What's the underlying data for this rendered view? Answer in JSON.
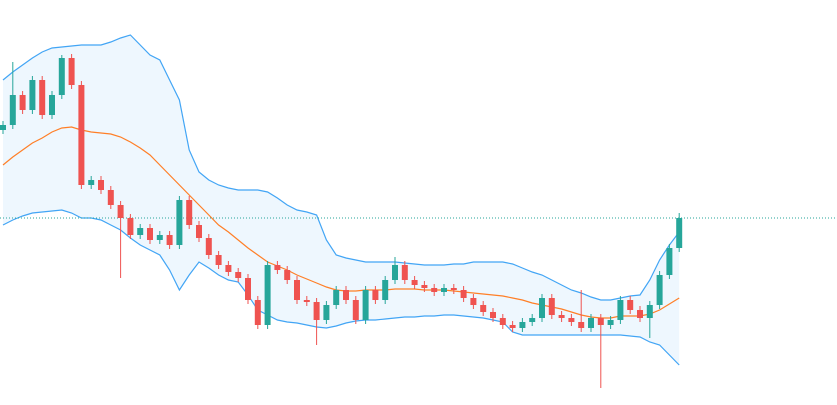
{
  "chart_data": {
    "type": "candlestick",
    "ylim": [
      0,
      405
    ],
    "up_color": "#26a69a",
    "down_color": "#ef5350",
    "band_fill": "#e3f2fd",
    "last_price": 187,
    "last_price_color": "#26a69a",
    "open": [
      275,
      280,
      310,
      295,
      325,
      290,
      310,
      347,
      320,
      220,
      225,
      215,
      200,
      187,
      170,
      177,
      165,
      170,
      160,
      205,
      180,
      167,
      150,
      140,
      133,
      127,
      105,
      80,
      140,
      135,
      125,
      105,
      103,
      85,
      100,
      115,
      105,
      85,
      115,
      105,
      125,
      140,
      125,
      120,
      117,
      113,
      117,
      115,
      107,
      100,
      93,
      87,
      80,
      77,
      83,
      87,
      107,
      90,
      87,
      83,
      77,
      87,
      80,
      85,
      105,
      95,
      87,
      100,
      130,
      157
    ],
    "high": [
      284,
      343,
      314,
      329,
      329,
      314,
      350,
      351,
      324,
      229,
      229,
      219,
      204,
      191,
      181,
      181,
      174,
      174,
      209,
      209,
      184,
      171,
      154,
      144,
      137,
      131,
      109,
      144,
      144,
      139,
      129,
      109,
      107,
      104,
      119,
      119,
      109,
      119,
      119,
      129,
      148,
      144,
      129,
      124,
      121,
      121,
      121,
      119,
      111,
      104,
      97,
      91,
      84,
      87,
      91,
      111,
      111,
      94,
      91,
      115,
      91,
      91,
      89,
      109,
      109,
      99,
      104,
      134,
      161,
      192
    ],
    "low": [
      271,
      276,
      291,
      291,
      286,
      286,
      306,
      316,
      216,
      216,
      211,
      196,
      127,
      166,
      166,
      161,
      161,
      156,
      156,
      176,
      163,
      146,
      136,
      129,
      123,
      101,
      76,
      76,
      131,
      121,
      101,
      99,
      60,
      81,
      96,
      101,
      81,
      81,
      101,
      101,
      121,
      121,
      116,
      113,
      109,
      109,
      111,
      103,
      96,
      89,
      83,
      76,
      73,
      73,
      79,
      83,
      86,
      83,
      79,
      73,
      73,
      17,
      76,
      81,
      91,
      83,
      67,
      96,
      126,
      153
    ],
    "close": [
      280,
      310,
      295,
      325,
      290,
      310,
      347,
      320,
      220,
      225,
      215,
      200,
      187,
      170,
      177,
      165,
      170,
      160,
      205,
      180,
      167,
      150,
      140,
      133,
      127,
      105,
      80,
      140,
      135,
      125,
      105,
      103,
      85,
      100,
      115,
      105,
      85,
      115,
      105,
      125,
      140,
      125,
      120,
      117,
      113,
      117,
      115,
      107,
      100,
      93,
      87,
      80,
      77,
      83,
      87,
      107,
      90,
      87,
      83,
      77,
      87,
      80,
      85,
      105,
      95,
      87,
      100,
      130,
      157,
      187
    ],
    "bands": [
      {
        "name": "upper",
        "color": "#42a5f5",
        "values": [
          325,
          333,
          340,
          347,
          353,
          357,
          358,
          359,
          360,
          360,
          360,
          363,
          367,
          370,
          360,
          350,
          345,
          325,
          305,
          255,
          233,
          225,
          220,
          217,
          215,
          215,
          215,
          213,
          207,
          200,
          195,
          193,
          190,
          165,
          150,
          147,
          145,
          143,
          143,
          143,
          143,
          142,
          141,
          140,
          140,
          140,
          141,
          141,
          143,
          143,
          143,
          143,
          141,
          137,
          133,
          130,
          125,
          120,
          115,
          112,
          108,
          105,
          105,
          107,
          109,
          110,
          125,
          145,
          160,
          173
        ]
      },
      {
        "name": "basis",
        "color": "#ff7f27",
        "values": [
          240,
          248,
          255,
          262,
          267,
          273,
          277,
          278,
          275,
          273,
          272,
          271,
          268,
          263,
          257,
          250,
          240,
          230,
          220,
          210,
          200,
          190,
          180,
          173,
          165,
          157,
          150,
          143,
          139,
          135,
          130,
          126,
          122,
          118,
          115,
          114,
          114,
          115,
          115,
          115,
          116,
          116,
          116,
          115,
          115,
          115,
          114,
          113,
          112,
          111,
          110,
          109,
          107,
          105,
          102,
          100,
          98,
          96,
          93,
          90,
          88,
          87,
          87,
          89,
          89,
          89,
          91,
          95,
          101,
          107
        ]
      },
      {
        "name": "lower",
        "color": "#42a5f5",
        "values": [
          180,
          185,
          189,
          192,
          193,
          194,
          195,
          192,
          187,
          187,
          185,
          180,
          175,
          167,
          160,
          155,
          150,
          135,
          115,
          130,
          143,
          137,
          130,
          125,
          123,
          110,
          95,
          90,
          85,
          83,
          82,
          80,
          78,
          77,
          79,
          82,
          84,
          85,
          85,
          86,
          87,
          88,
          88,
          89,
          89,
          90,
          90,
          89,
          88,
          87,
          85,
          83,
          73,
          70,
          70,
          70,
          70,
          70,
          70,
          70,
          70,
          70,
          70,
          70,
          69,
          68,
          63,
          60,
          50,
          40
        ]
      }
    ]
  }
}
